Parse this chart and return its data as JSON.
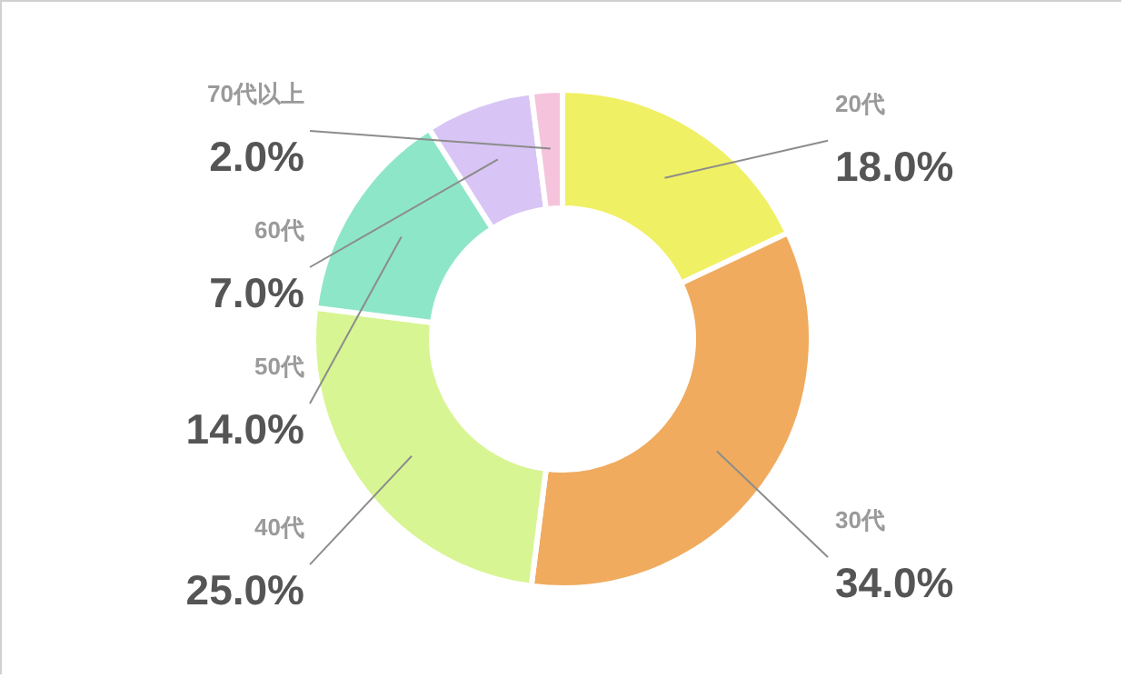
{
  "chart_data": {
    "type": "donut",
    "categories": [
      "20代",
      "30代",
      "40代",
      "50代",
      "60代",
      "70代以上"
    ],
    "values": [
      18,
      34,
      25,
      14,
      7,
      2
    ],
    "colors": [
      "#f0f064",
      "#f0ab5f",
      "#d8f593",
      "#8ee6c8",
      "#d8c5f5",
      "#f5c3dc"
    ],
    "value_labels": [
      "18.0%",
      "34.0%",
      "25.0%",
      "14.0%",
      "7.0%",
      "2.0%"
    ]
  }
}
